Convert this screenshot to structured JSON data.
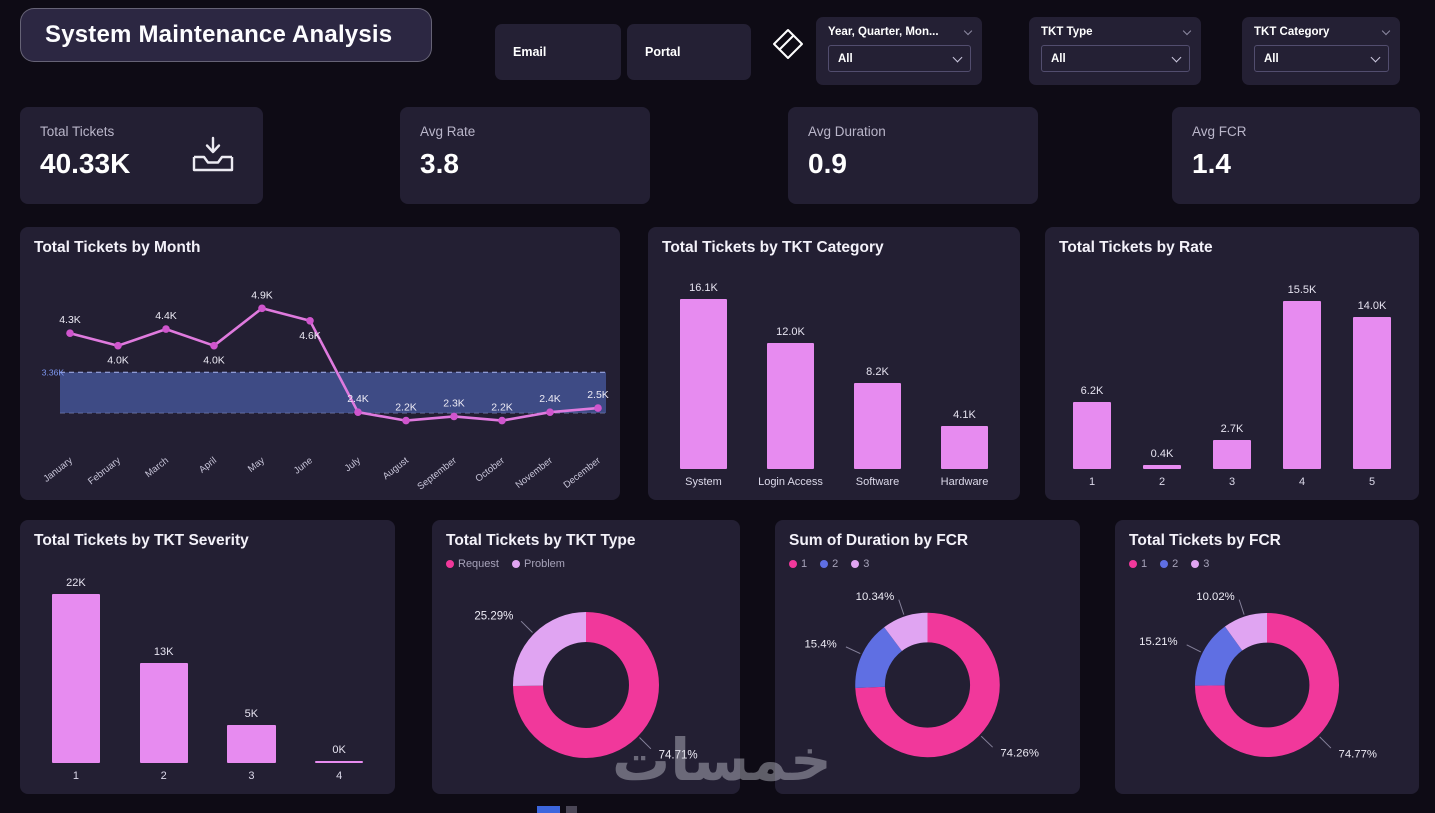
{
  "header": {
    "title": "System Maintenance Analysis",
    "nav_buttons": [
      {
        "label": "Email"
      },
      {
        "label": "Portal"
      }
    ],
    "slicers": [
      {
        "label": "Year, Quarter, Mon...",
        "value": "All"
      },
      {
        "label": "TKT Type",
        "value": "All"
      },
      {
        "label": "TKT Category",
        "value": "All"
      }
    ]
  },
  "kpis": [
    {
      "label": "Total Tickets",
      "value": "40.33K"
    },
    {
      "label": "Avg Rate",
      "value": "3.8"
    },
    {
      "label": "Avg Duration",
      "value": "0.9"
    },
    {
      "label": "Avg FCR",
      "value": "1.4"
    }
  ],
  "watermark": "خمسات",
  "colors": {
    "page_bg": "#0e0b15",
    "panel_bg": "#231f33",
    "accent_pink": "#f1389b",
    "accent_plum": "#e78bf0",
    "accent_blue": "#5f6fe3",
    "line_pink": "#df7ade"
  },
  "chart_data": [
    {
      "id": "tickets-by-month",
      "type": "line",
      "title": "Total Tickets by Month",
      "categories": [
        "January",
        "February",
        "March",
        "April",
        "May",
        "June",
        "July",
        "August",
        "September",
        "October",
        "November",
        "December"
      ],
      "values": [
        4.3,
        4.0,
        4.4,
        4.0,
        4.9,
        4.6,
        2.4,
        2.2,
        2.3,
        2.2,
        2.4,
        2.5
      ],
      "labels": [
        "4.3K",
        "4.0K",
        "4.4K",
        "4.0K",
        "4.9K",
        "4.6K",
        "2.4K",
        "2.2K",
        "2.3K",
        "2.2K",
        "2.4K",
        "2.5K"
      ],
      "label_side": [
        "above",
        "below",
        "above",
        "below",
        "above",
        "below",
        "above",
        "above",
        "above",
        "above",
        "above",
        "above"
      ],
      "unit": "K tickets",
      "ylim": [
        1.6,
        5.4
      ],
      "reference_band": {
        "top": 3.36,
        "bottom": 2.38,
        "label": "3.36K"
      },
      "line_color": "#df7ade",
      "marker_color": "#cf55cd",
      "band_fill": "#5570c8",
      "band_edge": "#a9b5ee",
      "grid": false,
      "legend": "none"
    },
    {
      "id": "tickets-by-category",
      "type": "bar",
      "title": "Total Tickets by TKT Category",
      "categories": [
        "System",
        "Login Access",
        "Software",
        "Hardware"
      ],
      "values": [
        16.1,
        12.0,
        8.2,
        4.1
      ],
      "labels": [
        "16.1K",
        "12.0K",
        "8.2K",
        "4.1K"
      ],
      "unit": "K tickets",
      "ylim": [
        0,
        17
      ],
      "bar_color": "#e78bf0"
    },
    {
      "id": "tickets-by-rate",
      "type": "bar",
      "title": "Total Tickets by Rate",
      "categories": [
        "1",
        "2",
        "3",
        "4",
        "5"
      ],
      "values": [
        6.2,
        0.4,
        2.7,
        15.5,
        14.0
      ],
      "labels": [
        "6.2K",
        "0.4K",
        "2.7K",
        "15.5K",
        "14.0K"
      ],
      "unit": "K tickets",
      "ylim": [
        0,
        16.5
      ],
      "bar_color": "#e78bf0"
    },
    {
      "id": "tickets-by-severity",
      "type": "bar",
      "title": "Total Tickets by TKT Severity",
      "categories": [
        "1",
        "2",
        "3",
        "4"
      ],
      "values": [
        22,
        13,
        5,
        0
      ],
      "labels": [
        "22K",
        "13K",
        "5K",
        "0K"
      ],
      "unit": "K tickets",
      "ylim": [
        0,
        23.5
      ],
      "bar_color": "#e78bf0"
    },
    {
      "id": "tickets-by-type",
      "type": "donut",
      "title": "Total Tickets by TKT Type",
      "slices": [
        {
          "label": "Request",
          "value": 74.71,
          "display": "74.71%",
          "color": "#f1389b"
        },
        {
          "label": "Problem",
          "value": 25.29,
          "display": "25.29%",
          "color": "#e0a4f2"
        }
      ]
    },
    {
      "id": "duration-by-fcr",
      "type": "donut",
      "title": "Sum of Duration by FCR",
      "slices": [
        {
          "label": "1",
          "value": 74.26,
          "display": "74.26%",
          "color": "#f1389b"
        },
        {
          "label": "2",
          "value": 15.4,
          "display": "15.4%",
          "color": "#5f6fe3"
        },
        {
          "label": "3",
          "value": 10.34,
          "display": "10.34%",
          "color": "#e0a4f2"
        }
      ]
    },
    {
      "id": "tickets-by-fcr",
      "type": "donut",
      "title": "Total Tickets by FCR",
      "slices": [
        {
          "label": "1",
          "value": 74.77,
          "display": "74.77%",
          "color": "#f1389b"
        },
        {
          "label": "2",
          "value": 15.21,
          "display": "15.21%",
          "color": "#5f6fe3"
        },
        {
          "label": "3",
          "value": 10.02,
          "display": "10.02%",
          "color": "#e0a4f2"
        }
      ]
    }
  ]
}
